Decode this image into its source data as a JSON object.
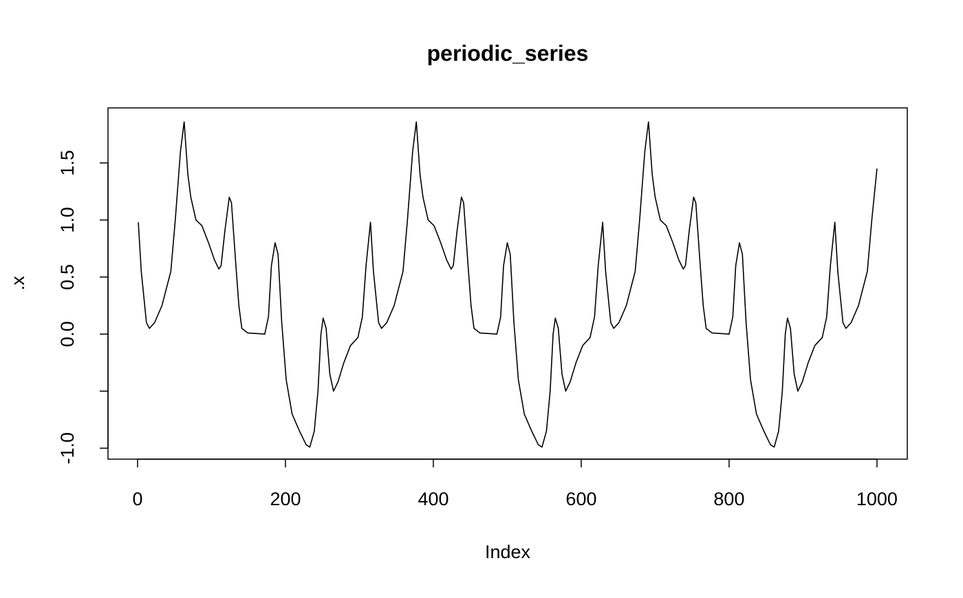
{
  "chart_data": {
    "type": "line",
    "title": "periodic_series",
    "x_label": "Index",
    "y_label": ".x",
    "x": [
      1,
      5,
      12,
      16,
      23,
      33,
      45,
      51,
      58,
      63,
      68,
      72,
      79,
      87,
      96,
      104,
      110,
      113,
      118,
      124,
      127,
      133,
      137,
      141,
      149,
      172,
      177,
      181,
      186,
      190,
      195,
      201,
      209,
      219,
      228,
      233,
      239,
      244,
      248,
      251,
      255,
      260,
      265,
      271,
      279,
      288,
      298,
      304,
      309,
      315,
      319,
      326,
      330,
      337,
      347,
      359,
      365,
      372,
      377,
      382,
      386,
      393,
      401,
      410,
      418,
      424,
      427,
      432,
      438,
      441,
      447,
      451,
      455,
      463,
      486,
      491,
      495,
      500,
      504,
      509,
      515,
      523,
      533,
      542,
      547,
      553,
      558,
      562,
      565,
      569,
      574,
      579,
      585,
      593,
      602,
      612,
      618,
      623,
      629,
      633,
      640,
      644,
      651,
      661,
      673,
      679,
      686,
      691,
      696,
      700,
      707,
      715,
      724,
      732,
      738,
      741,
      746,
      752,
      755,
      761,
      765,
      769,
      777,
      800,
      805,
      809,
      814,
      818,
      823,
      829,
      837,
      847,
      856,
      861,
      867,
      872,
      876,
      879,
      883,
      888,
      893,
      899,
      907,
      916,
      926,
      932,
      937,
      943,
      947,
      954,
      958,
      965,
      975,
      987,
      993,
      1000
    ],
    "series": [
      {
        "color": "#000000",
        "values": [
          0.98,
          0.55,
          0.1,
          0.05,
          0.1,
          0.25,
          0.55,
          1.0,
          1.6,
          1.86,
          1.4,
          1.2,
          1.0,
          0.95,
          0.8,
          0.65,
          0.57,
          0.6,
          0.9,
          1.2,
          1.15,
          0.6,
          0.25,
          0.05,
          0.01,
          0.0,
          0.15,
          0.6,
          0.8,
          0.7,
          0.1,
          -0.4,
          -0.7,
          -0.85,
          -0.97,
          -0.99,
          -0.85,
          -0.5,
          0.0,
          0.14,
          0.05,
          -0.35,
          -0.5,
          -0.42,
          -0.25,
          -0.1,
          -0.03,
          0.15,
          0.6,
          0.98,
          0.55,
          0.1,
          0.05,
          0.1,
          0.25,
          0.55,
          1.0,
          1.6,
          1.86,
          1.4,
          1.2,
          1.0,
          0.95,
          0.8,
          0.65,
          0.57,
          0.6,
          0.9,
          1.2,
          1.15,
          0.6,
          0.25,
          0.05,
          0.01,
          0.0,
          0.15,
          0.6,
          0.8,
          0.7,
          0.1,
          -0.4,
          -0.7,
          -0.85,
          -0.97,
          -0.99,
          -0.85,
          -0.5,
          0.0,
          0.14,
          0.05,
          -0.35,
          -0.5,
          -0.42,
          -0.25,
          -0.1,
          -0.03,
          0.15,
          0.6,
          0.98,
          0.55,
          0.1,
          0.05,
          0.1,
          0.25,
          0.55,
          1.0,
          1.6,
          1.86,
          1.4,
          1.2,
          1.0,
          0.95,
          0.8,
          0.65,
          0.57,
          0.6,
          0.9,
          1.2,
          1.15,
          0.6,
          0.25,
          0.05,
          0.01,
          0.0,
          0.15,
          0.6,
          0.8,
          0.7,
          0.1,
          -0.4,
          -0.7,
          -0.85,
          -0.97,
          -0.99,
          -0.85,
          -0.5,
          0.0,
          0.14,
          0.05,
          -0.35,
          -0.5,
          -0.42,
          -0.25,
          -0.1,
          -0.03,
          0.15,
          0.6,
          0.98,
          0.55,
          0.1,
          0.05,
          0.1,
          0.25,
          0.55,
          1.0,
          1.45
        ]
      }
    ],
    "xlim": [
      -40,
      1041
    ],
    "ylim": [
      -1.096,
      1.982
    ],
    "xticks": [
      0,
      200,
      400,
      600,
      800,
      1000
    ],
    "yticks": [
      {
        "value": -1,
        "label": "-1.0"
      },
      {
        "value": -0.5,
        "label": null
      },
      {
        "value": 0,
        "label": "0.0"
      },
      0.5,
      {
        "value": 1,
        "label": "1.0"
      },
      1.5
    ]
  }
}
